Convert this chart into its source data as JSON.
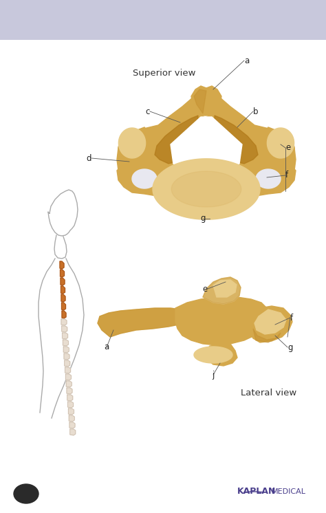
{
  "bg_top_color": "#c8c8dc",
  "bg_main_color": "#ffffff",
  "title": "Superior view",
  "title2": "Lateral view",
  "kaplan_text": "KAPLAN",
  "medical_text": "MEDICAL",
  "kaplan_color": "#4a3f8c",
  "label_color": "#333333",
  "bone_base": "#d4a84b",
  "bone_light": "#e8cc88",
  "bone_mid": "#c49030",
  "bone_dark": "#9a7020",
  "bone_shadow": "#b07818",
  "label_font_size": 8.5,
  "title_font_size": 9.5
}
